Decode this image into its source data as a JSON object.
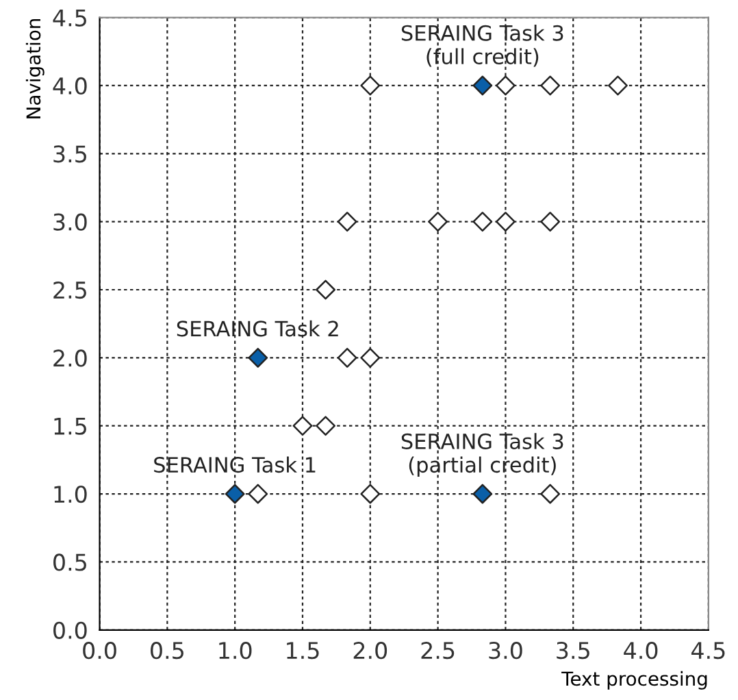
{
  "chart_data": {
    "type": "scatter",
    "xlabel": "Text processing",
    "ylabel": "Navigation",
    "series": [
      {
        "color": "#ffffff",
        "x": [
          2.0,
          3.0,
          3.33,
          3.83,
          1.83,
          2.5,
          2.83,
          3.0,
          3.33,
          1.67,
          1.83,
          2.0,
          1.5,
          1.67,
          1.17,
          2.0,
          3.33
        ],
        "values": [
          4,
          4,
          4,
          4,
          3,
          3,
          3,
          3,
          3,
          2.5,
          2,
          2,
          1.5,
          1.5,
          1,
          1,
          1
        ]
      },
      {
        "color": "#0a5fa8",
        "x": [
          2.83,
          1.17,
          1.0,
          2.83
        ],
        "values": [
          4,
          2,
          1,
          1
        ]
      }
    ],
    "annotations": [
      {
        "text": "SERAING Task 3\n(full credit)",
        "x": 2.83,
        "y": 4
      },
      {
        "text": "SERAING Task 2",
        "x": 1.17,
        "y": 2
      },
      {
        "text": "SERAING Task 1",
        "x": 1.0,
        "y": 1
      },
      {
        "text": "SERAING Task 3\n(partial credit)",
        "x": 2.83,
        "y": 1
      }
    ],
    "marker": "diamond",
    "grid": true,
    "legend": false,
    "xlim": [
      0,
      4.5
    ],
    "ylim": [
      0,
      4.5
    ],
    "xticks": [
      {
        "value": 0,
        "label": "0.0"
      },
      0.5,
      {
        "value": 1,
        "label": "1.0"
      },
      1.5,
      {
        "value": 2,
        "label": "2.0"
      },
      2.5,
      {
        "value": 3,
        "label": "3.0"
      },
      3.5,
      {
        "value": 4,
        "label": "4.0"
      },
      4.5
    ],
    "yticks": [
      {
        "value": 0,
        "label": "0.0"
      },
      0.5,
      {
        "value": 1,
        "label": "1.0"
      },
      1.5,
      {
        "value": 2,
        "label": "2.0"
      },
      2.5,
      {
        "value": 3,
        "label": "3.0"
      },
      3.5,
      {
        "value": 4,
        "label": "4.0"
      },
      4.5
    ]
  }
}
